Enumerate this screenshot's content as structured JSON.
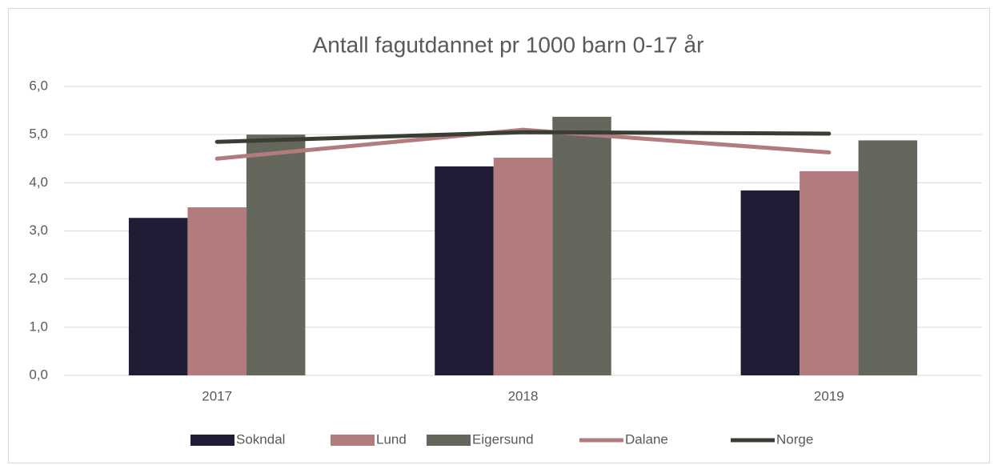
{
  "chart_data": {
    "type": "bar",
    "title": "Antall fagutdannet pr 1000 barn 0-17 år",
    "categories": [
      "2017",
      "2018",
      "2019"
    ],
    "series": [
      {
        "name": "Sokndal",
        "color": "#211c35",
        "values": [
          3.27,
          4.34,
          3.84
        ]
      },
      {
        "name": "Lund",
        "color": "#b27b7e",
        "values": [
          3.49,
          4.52,
          4.24
        ]
      },
      {
        "name": "Eigersund",
        "color": "#65675c",
        "values": [
          5.0,
          5.37,
          4.88
        ]
      },
      {
        "name": "Dalane",
        "type": "line",
        "color": "#b27b7e",
        "values": [
          4.5,
          5.1,
          4.63
        ]
      },
      {
        "name": "Norge",
        "type": "line",
        "color": "#3a3d34",
        "values": [
          4.85,
          5.05,
          5.02
        ]
      }
    ],
    "ylim": [
      0,
      6
    ],
    "yticks": [
      {
        "value": 0,
        "label": "0,0"
      },
      {
        "value": 1,
        "label": "1,0"
      },
      {
        "value": 2,
        "label": "2,0"
      },
      {
        "value": 3,
        "label": "3,0"
      },
      {
        "value": 4,
        "label": "4,0"
      },
      {
        "value": 5,
        "label": "5,0"
      },
      {
        "value": 6,
        "label": "6,0"
      }
    ],
    "grid": true,
    "legend": "bottom"
  }
}
